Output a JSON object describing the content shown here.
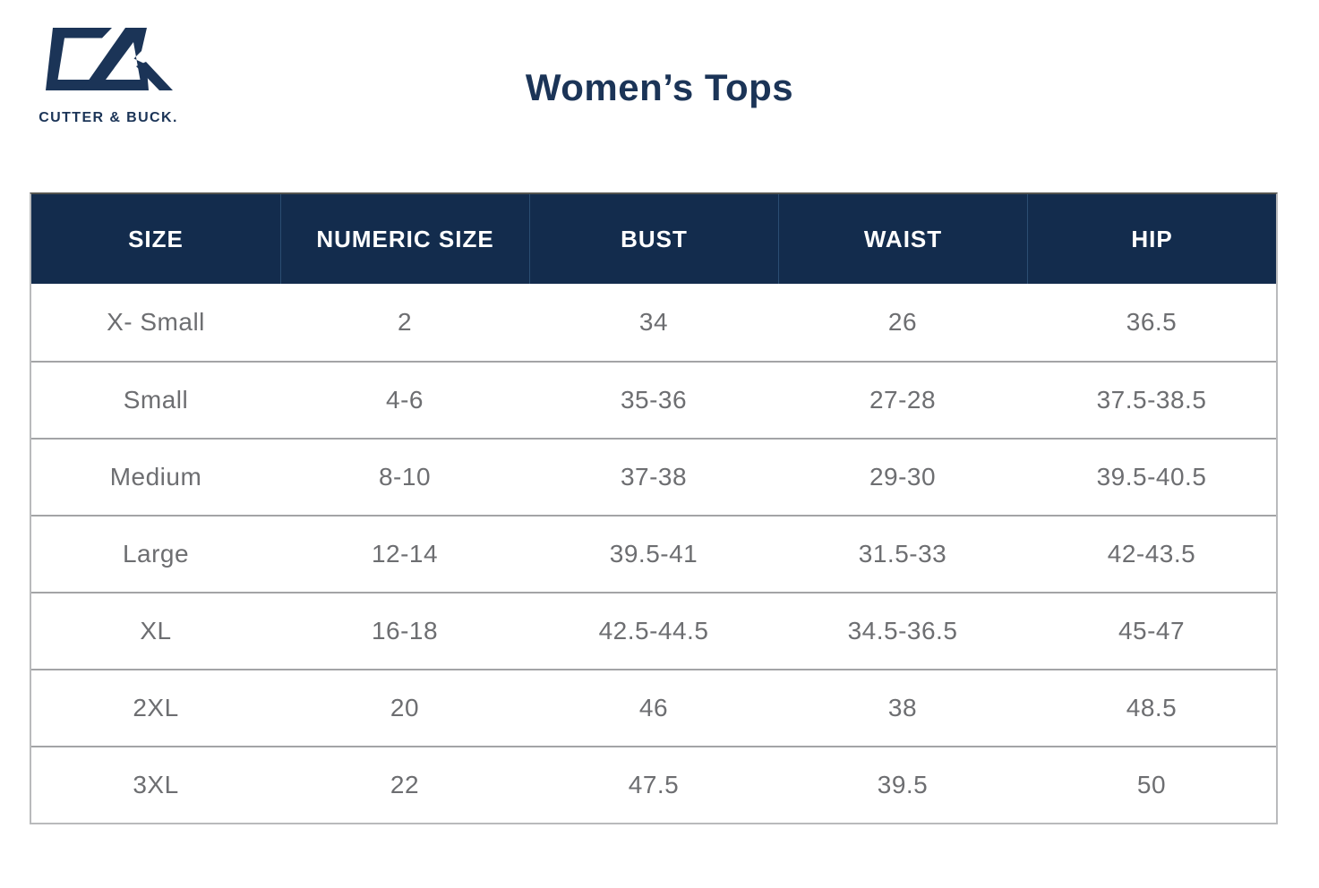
{
  "brand": {
    "logo_icon": "cutter-buck-monogram",
    "logo_text": "CUTTER & BUCK."
  },
  "header": {
    "title": "Women’s Tops"
  },
  "theme": {
    "navy": "#1b3457",
    "header_bg": "#132c4d",
    "header_divider": "#2b4d72",
    "body_text": "#6d6e71",
    "row_border": "#a3a4a6",
    "outer_border": "#b9babc",
    "table_top_border": "#555550"
  },
  "chart_data": {
    "type": "table",
    "title": "Women’s Tops",
    "columns": [
      "SIZE",
      "NUMERIC SIZE",
      "BUST",
      "WAIST",
      "HIP"
    ],
    "rows": [
      [
        "X- Small",
        "2",
        "34",
        "26",
        "36.5"
      ],
      [
        "Small",
        "4-6",
        "35-36",
        "27-28",
        "37.5-38.5"
      ],
      [
        "Medium",
        "8-10",
        "37-38",
        "29-30",
        "39.5-40.5"
      ],
      [
        "Large",
        "12-14",
        "39.5-41",
        "31.5-33",
        "42-43.5"
      ],
      [
        "XL",
        "16-18",
        "42.5-44.5",
        "34.5-36.5",
        "45-47"
      ],
      [
        "2XL",
        "20",
        "46",
        "38",
        "48.5"
      ],
      [
        "3XL",
        "22",
        "47.5",
        "39.5",
        "50"
      ]
    ],
    "layout": {
      "header_background": "#132c4d",
      "header_text": "#ffffff",
      "grid": "horizontal-only",
      "column_alignment": "center"
    }
  }
}
